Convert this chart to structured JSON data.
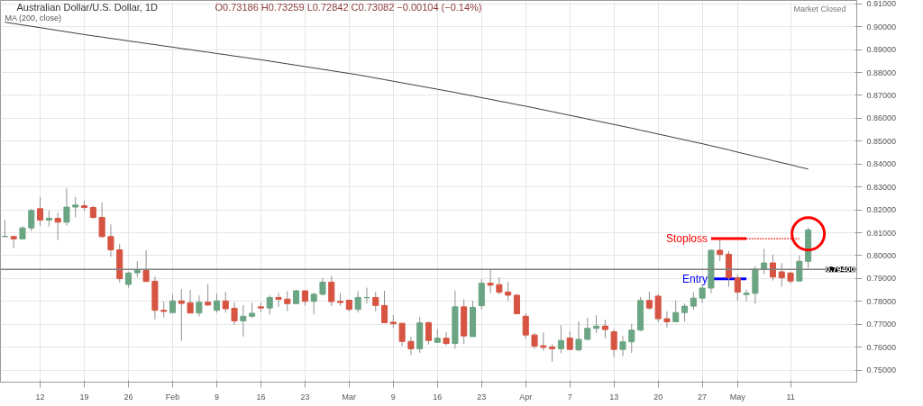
{
  "chart_data": {
    "type": "candlestick",
    "title": "Australian Dollar/U.S. Dollar, 1D",
    "subtitle": "O0.73186 H0.73259 L0.72842 C0.73082 −0.00104 (−0.14%)",
    "annotations": [
      "Market Closed"
    ],
    "categories": [
      null,
      null,
      null,
      null,
      "12",
      null,
      null,
      null,
      null,
      "19",
      null,
      null,
      null,
      null,
      "26",
      null,
      null,
      null,
      null,
      "Feb",
      null,
      null,
      null,
      null,
      "9",
      null,
      null,
      null,
      null,
      "16",
      null,
      null,
      null,
      null,
      "23",
      null,
      null,
      null,
      null,
      "Mar",
      null,
      null,
      null,
      null,
      "9",
      null,
      null,
      null,
      null,
      "16",
      null,
      null,
      null,
      null,
      "23",
      null,
      null,
      null,
      null,
      "Apr",
      null,
      null,
      null,
      null,
      "7",
      null,
      null,
      null,
      null,
      "13",
      null,
      null,
      null,
      null,
      "20",
      null,
      null,
      null,
      null,
      "27",
      null,
      null,
      null,
      "May",
      null,
      null,
      null,
      null,
      null,
      "11",
      null,
      null
    ],
    "ohlc": [
      [
        0.8083,
        0.8156,
        0.808,
        0.8084
      ],
      [
        0.8083,
        0.8088,
        0.8033,
        0.8073
      ],
      [
        0.8073,
        0.8128,
        0.8071,
        0.8121
      ],
      [
        0.8121,
        0.8205,
        0.8107,
        0.8197
      ],
      [
        0.8205,
        0.8256,
        0.813,
        0.8155
      ],
      [
        0.8155,
        0.8196,
        0.8127,
        0.8163
      ],
      [
        0.8163,
        0.8187,
        0.8067,
        0.8146
      ],
      [
        0.8146,
        0.8293,
        0.8131,
        0.8212
      ],
      [
        0.8212,
        0.8256,
        0.8167,
        0.8221
      ],
      [
        0.8218,
        0.824,
        0.8196,
        0.821
      ],
      [
        0.821,
        0.8218,
        0.816,
        0.8167
      ],
      [
        0.8167,
        0.8233,
        0.8078,
        0.8083
      ],
      [
        0.8083,
        0.8136,
        0.7995,
        0.8025
      ],
      [
        0.8025,
        0.8052,
        0.7883,
        0.7899
      ],
      [
        0.7874,
        0.793,
        0.786,
        0.7924
      ],
      [
        0.7925,
        0.7975,
        0.7906,
        0.7935
      ],
      [
        0.7935,
        0.8023,
        0.7887,
        0.7887
      ],
      [
        0.7888,
        0.7908,
        0.7721,
        0.7761
      ],
      [
        0.7761,
        0.7798,
        0.773,
        0.7756
      ],
      [
        0.7751,
        0.7832,
        0.7751,
        0.7802
      ],
      [
        0.7802,
        0.7854,
        0.7628,
        0.7791
      ],
      [
        0.7794,
        0.785,
        0.7749,
        0.7749
      ],
      [
        0.7749,
        0.7826,
        0.7734,
        0.7796
      ],
      [
        0.7796,
        0.7875,
        0.7779,
        0.7784
      ],
      [
        0.7761,
        0.7835,
        0.7751,
        0.7802
      ],
      [
        0.7802,
        0.7841,
        0.7751,
        0.7768
      ],
      [
        0.777,
        0.7796,
        0.7697,
        0.7715
      ],
      [
        0.7715,
        0.7784,
        0.7646,
        0.7735
      ],
      [
        0.7735,
        0.7793,
        0.7728,
        0.7748
      ],
      [
        0.7776,
        0.7795,
        0.7753,
        0.7771
      ],
      [
        0.7771,
        0.7826,
        0.7743,
        0.7817
      ],
      [
        0.7817,
        0.7837,
        0.7776,
        0.7809
      ],
      [
        0.781,
        0.7844,
        0.7757,
        0.779
      ],
      [
        0.779,
        0.785,
        0.7789,
        0.7846
      ],
      [
        0.7846,
        0.7849,
        0.7781,
        0.78
      ],
      [
        0.78,
        0.7838,
        0.7742,
        0.7831
      ],
      [
        0.7831,
        0.7902,
        0.7826,
        0.7884
      ],
      [
        0.7884,
        0.7912,
        0.7779,
        0.7799
      ],
      [
        0.78,
        0.7836,
        0.7781,
        0.7795
      ],
      [
        0.7805,
        0.7808,
        0.7756,
        0.7765
      ],
      [
        0.7765,
        0.7845,
        0.7751,
        0.7817
      ],
      [
        0.7816,
        0.786,
        0.7791,
        0.7817
      ],
      [
        0.7817,
        0.7841,
        0.7757,
        0.7782
      ],
      [
        0.7782,
        0.7846,
        0.7707,
        0.7707
      ],
      [
        0.7709,
        0.774,
        0.7684,
        0.7702
      ],
      [
        0.7704,
        0.7706,
        0.7604,
        0.7625
      ],
      [
        0.7625,
        0.7645,
        0.7564,
        0.7593
      ],
      [
        0.7593,
        0.7732,
        0.7575,
        0.7706
      ],
      [
        0.7707,
        0.7712,
        0.7611,
        0.7629
      ],
      [
        0.7621,
        0.7679,
        0.7621,
        0.7639
      ],
      [
        0.7639,
        0.7667,
        0.7607,
        0.7616
      ],
      [
        0.7616,
        0.7847,
        0.7593,
        0.7776
      ],
      [
        0.7776,
        0.7809,
        0.7613,
        0.7649
      ],
      [
        0.7646,
        0.7802,
        0.7646,
        0.7774
      ],
      [
        0.7781,
        0.7897,
        0.7765,
        0.7879
      ],
      [
        0.7879,
        0.7938,
        0.7835,
        0.7871
      ],
      [
        0.7873,
        0.7905,
        0.783,
        0.784
      ],
      [
        0.7841,
        0.7884,
        0.7803,
        0.7827
      ],
      [
        0.7827,
        0.7832,
        0.7746,
        0.7746
      ],
      [
        0.7735,
        0.7748,
        0.7636,
        0.7653
      ],
      [
        0.7653,
        0.7663,
        0.7593,
        0.7604
      ],
      [
        0.7606,
        0.7664,
        0.7585,
        0.7599
      ],
      [
        0.7601,
        0.7613,
        0.7537,
        0.7593
      ],
      [
        0.7593,
        0.7696,
        0.7573,
        0.7629
      ],
      [
        0.764,
        0.7668,
        0.7587,
        0.759
      ],
      [
        0.7588,
        0.7712,
        0.7581,
        0.7634
      ],
      [
        0.7634,
        0.7728,
        0.7631,
        0.7682
      ],
      [
        0.7682,
        0.774,
        0.7662,
        0.7692
      ],
      [
        0.7692,
        0.772,
        0.7639,
        0.7677
      ],
      [
        0.7667,
        0.7679,
        0.7556,
        0.759
      ],
      [
        0.759,
        0.7649,
        0.756,
        0.7623
      ],
      [
        0.7623,
        0.7702,
        0.7575,
        0.7674
      ],
      [
        0.7674,
        0.7819,
        0.767,
        0.7804
      ],
      [
        0.7804,
        0.7842,
        0.7763,
        0.7771
      ],
      [
        0.7823,
        0.7832,
        0.7709,
        0.7724
      ],
      [
        0.7724,
        0.7756,
        0.7686,
        0.7711
      ],
      [
        0.7711,
        0.7804,
        0.7711,
        0.7751
      ],
      [
        0.7751,
        0.7791,
        0.7712,
        0.7779
      ],
      [
        0.7779,
        0.784,
        0.7763,
        0.7814
      ],
      [
        0.7814,
        0.7874,
        0.7794,
        0.7858
      ],
      [
        0.7858,
        0.8027,
        0.7836,
        0.8023
      ],
      [
        0.8023,
        0.8071,
        0.7976,
        0.8005
      ],
      [
        0.8006,
        0.802,
        0.7864,
        0.7903
      ],
      [
        0.7903,
        0.7919,
        0.7802,
        0.784
      ],
      [
        0.783,
        0.7851,
        0.7802,
        0.7836
      ],
      [
        0.7835,
        0.7954,
        0.7789,
        0.7941
      ],
      [
        0.7941,
        0.8029,
        0.7919,
        0.7968
      ],
      [
        0.7968,
        0.8004,
        0.7891,
        0.7906
      ],
      [
        0.7929,
        0.7967,
        0.7864,
        0.7903
      ],
      [
        0.7924,
        0.7929,
        0.7878,
        0.7889
      ],
      [
        0.7889,
        0.8001,
        0.7889,
        0.7975
      ],
      [
        0.7975,
        0.8122,
        0.7944,
        0.8112
      ]
    ],
    "colors": [
      "#6ba583",
      "#d75442",
      "#6ba583",
      "#6ba583",
      "#d75442",
      "#6ba583",
      "#d75442",
      "#6ba583",
      "#6ba583",
      "#d75442",
      "#d75442",
      "#d75442",
      "#d75442",
      "#d75442",
      "#6ba583",
      "#6ba583",
      "#d75442",
      "#d75442",
      "#d75442",
      "#6ba583",
      "#d75442",
      "#d75442",
      "#6ba583",
      "#d75442",
      "#6ba583",
      "#d75442",
      "#d75442",
      "#6ba583",
      "#6ba583",
      "#d75442",
      "#6ba583",
      "#d75442",
      "#d75442",
      "#6ba583",
      "#d75442",
      "#6ba583",
      "#6ba583",
      "#d75442",
      "#d75442",
      "#d75442",
      "#6ba583",
      "#6ba583",
      "#d75442",
      "#d75442",
      "#d75442",
      "#d75442",
      "#d75442",
      "#6ba583",
      "#d75442",
      "#6ba583",
      "#d75442",
      "#6ba583",
      "#d75442",
      "#6ba583",
      "#6ba583",
      "#d75442",
      "#d75442",
      "#d75442",
      "#d75442",
      "#d75442",
      "#d75442",
      "#d75442",
      "#d75442",
      "#6ba583",
      "#d75442",
      "#6ba583",
      "#6ba583",
      "#6ba583",
      "#d75442",
      "#d75442",
      "#6ba583",
      "#6ba583",
      "#6ba583",
      "#d75442",
      "#d75442",
      "#d75442",
      "#6ba583",
      "#6ba583",
      "#6ba583",
      "#6ba583",
      "#6ba583",
      "#d75442",
      "#d75442",
      "#d75442",
      "#6ba583",
      "#6ba583",
      "#6ba583",
      "#d75442",
      "#d75442",
      "#d75442",
      "#6ba583",
      "#6ba583"
    ],
    "series": [
      {
        "name": "MA (200, close)",
        "type": "line",
        "color": "#3c3c3c",
        "values": [
          0.902,
          0.9014,
          0.9008,
          0.9002,
          0.8996,
          0.899,
          0.8984,
          0.8978,
          0.8972,
          0.8966,
          0.896,
          0.8955,
          0.8949,
          0.8944,
          0.8938,
          0.8933,
          0.8927,
          0.8922,
          0.8916,
          0.8911,
          0.8905,
          0.89,
          0.8894,
          0.8889,
          0.8883,
          0.8878,
          0.8872,
          0.8867,
          0.8861,
          0.8856,
          0.885,
          0.8844,
          0.8838,
          0.8832,
          0.8826,
          0.882,
          0.8814,
          0.8808,
          0.8802,
          0.8796,
          0.879,
          0.8783,
          0.8776,
          0.8769,
          0.8762,
          0.8755,
          0.8748,
          0.8741,
          0.8734,
          0.8727,
          0.872,
          0.8713,
          0.8705,
          0.8698,
          0.869,
          0.8683,
          0.8675,
          0.8668,
          0.866,
          0.8653,
          0.8645,
          0.8637,
          0.8629,
          0.8621,
          0.8613,
          0.8605,
          0.8597,
          0.8589,
          0.8581,
          0.8573,
          0.8565,
          0.8557,
          0.8548,
          0.854,
          0.8531,
          0.8523,
          0.8514,
          0.8506,
          0.8497,
          0.8489,
          0.848,
          0.8471,
          0.8462,
          0.8452,
          0.8443,
          0.8434,
          0.8425,
          0.8415,
          0.8406,
          0.8397,
          0.8387,
          0.8378
        ]
      },
      {
        "name": "Stoploss",
        "type": "line",
        "color": "#ff0000",
        "values": [
          null,
          null,
          null,
          null,
          null,
          null,
          null,
          null,
          null,
          null,
          null,
          null,
          null,
          null,
          null,
          null,
          null,
          null,
          null,
          null,
          null,
          null,
          null,
          null,
          null,
          null,
          null,
          null,
          null,
          null,
          null,
          null,
          null,
          null,
          null,
          null,
          null,
          null,
          null,
          null,
          null,
          null,
          null,
          null,
          null,
          null,
          null,
          null,
          null,
          null,
          null,
          null,
          null,
          null,
          null,
          null,
          null,
          null,
          null,
          null,
          null,
          null,
          null,
          null,
          null,
          null,
          null,
          null,
          null,
          null,
          null,
          null,
          null,
          null,
          null,
          null,
          null,
          null,
          null,
          null,
          0.8074,
          0.8074,
          0.8074,
          0.8074,
          0.8074,
          null,
          null,
          null,
          null,
          null,
          null,
          null
        ]
      },
      {
        "type": "line",
        "color": "#ff0000",
        "line_style": "dotted",
        "values": [
          null,
          null,
          null,
          null,
          null,
          null,
          null,
          null,
          null,
          null,
          null,
          null,
          null,
          null,
          null,
          null,
          null,
          null,
          null,
          null,
          null,
          null,
          null,
          null,
          null,
          null,
          null,
          null,
          null,
          null,
          null,
          null,
          null,
          null,
          null,
          null,
          null,
          null,
          null,
          null,
          null,
          null,
          null,
          null,
          null,
          null,
          null,
          null,
          null,
          null,
          null,
          null,
          null,
          null,
          null,
          null,
          null,
          null,
          null,
          null,
          null,
          null,
          null,
          null,
          null,
          null,
          null,
          null,
          null,
          null,
          null,
          null,
          null,
          null,
          null,
          null,
          null,
          null,
          null,
          null,
          null,
          null,
          null,
          null,
          0.8074,
          0.8074,
          0.8074,
          0.8074,
          0.8074,
          0.8074,
          0.8074,
          null
        ]
      },
      {
        "name": "Entry",
        "type": "line",
        "color": "#0000ff",
        "values": [
          null,
          null,
          null,
          null,
          null,
          null,
          null,
          null,
          null,
          null,
          null,
          null,
          null,
          null,
          null,
          null,
          null,
          null,
          null,
          null,
          null,
          null,
          null,
          null,
          null,
          null,
          null,
          null,
          null,
          null,
          null,
          null,
          null,
          null,
          null,
          null,
          null,
          null,
          null,
          null,
          null,
          null,
          null,
          null,
          null,
          null,
          null,
          null,
          null,
          null,
          null,
          null,
          null,
          null,
          null,
          null,
          null,
          null,
          null,
          null,
          null,
          null,
          null,
          null,
          null,
          null,
          null,
          null,
          null,
          null,
          null,
          null,
          null,
          null,
          null,
          null,
          null,
          null,
          null,
          null,
          0.7898,
          0.7898,
          0.7898,
          0.7898,
          0.7898,
          null,
          null,
          null,
          null,
          null,
          null,
          null
        ]
      },
      {
        "type": "scatter",
        "marker": "circle",
        "color": "#ff0000",
        "values": [
          null,
          null,
          null,
          null,
          null,
          null,
          null,
          null,
          null,
          null,
          null,
          null,
          null,
          null,
          null,
          null,
          null,
          null,
          null,
          null,
          null,
          null,
          null,
          null,
          null,
          null,
          null,
          null,
          null,
          null,
          null,
          null,
          null,
          null,
          null,
          null,
          null,
          null,
          null,
          null,
          null,
          null,
          null,
          null,
          null,
          null,
          null,
          null,
          null,
          null,
          null,
          null,
          null,
          null,
          null,
          null,
          null,
          null,
          null,
          null,
          null,
          null,
          null,
          null,
          null,
          null,
          null,
          null,
          null,
          null,
          null,
          null,
          null,
          null,
          null,
          null,
          null,
          null,
          null,
          null,
          null,
          null,
          null,
          null,
          null,
          null,
          null,
          null,
          null,
          null,
          null,
          0.8095
        ]
      }
    ],
    "ylim": [
      0.7447,
      0.9115
    ],
    "yticks": [
      {
        "value": 0.75,
        "label": "0.75000"
      },
      {
        "value": 0.76,
        "label": "0.76000"
      },
      {
        "value": 0.77,
        "label": "0.77000"
      },
      {
        "value": 0.78,
        "label": "0.78000"
      },
      {
        "value": 0.79,
        "label": "0.79000"
      },
      {
        "value": 0.8,
        "label": "0.80000"
      },
      {
        "value": 0.81,
        "label": "0.81000"
      },
      {
        "value": 0.82,
        "label": "0.82000"
      },
      {
        "value": 0.83,
        "label": "0.83000"
      },
      {
        "value": 0.84,
        "label": "0.84000"
      },
      {
        "value": 0.85,
        "label": "0.85000"
      },
      {
        "value": 0.86,
        "label": "0.86000"
      },
      {
        "value": 0.87,
        "label": "0.87000"
      },
      {
        "value": 0.88,
        "label": "0.88000"
      },
      {
        "value": 0.89,
        "label": "0.89000"
      },
      {
        "value": 0.9,
        "label": "0.90000"
      },
      {
        "value": 0.91,
        "label": "0.91000"
      }
    ],
    "ref_lines": [
      {
        "axis": "y",
        "value": 0.794,
        "label": "0.79400",
        "color": "#808080"
      }
    ],
    "grid": true
  }
}
